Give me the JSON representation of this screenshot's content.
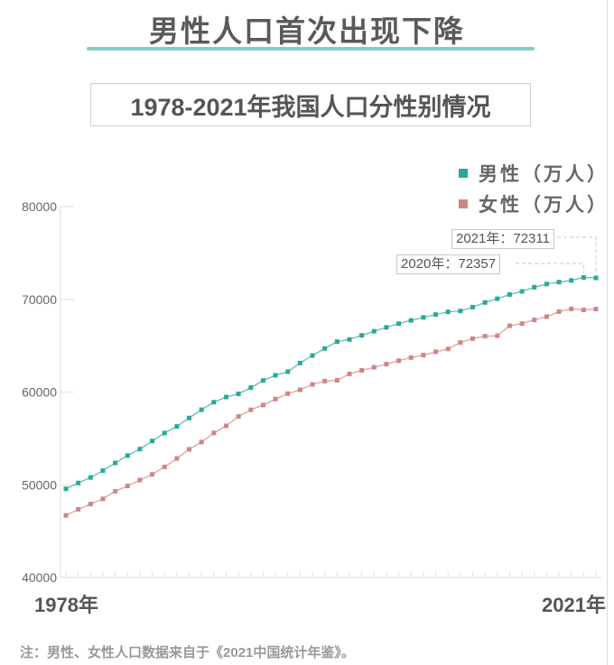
{
  "header": {
    "main_title": "男性人口首次出现下降",
    "subtitle": "1978-2021年我国人口分性别情况"
  },
  "legend": [
    {
      "label": "男性（万人）",
      "color": "#2aa89a"
    },
    {
      "label": "女性（万人）",
      "color": "#d08585"
    }
  ],
  "annotations": {
    "y2021": "2021年：72311",
    "y2020": "2020年：72357"
  },
  "axis": {
    "x_start_label": "1978年",
    "x_end_label": "2021年",
    "y_ticks": [
      "80000",
      "70000",
      "60000",
      "50000",
      "40000"
    ]
  },
  "note": "注：男性、女性人口数据来自于《2021中国统计年鉴》。",
  "chart_data": {
    "type": "line",
    "title": "1978-2021年我国人口分性别情况",
    "xlabel": "",
    "ylabel": "万人",
    "ylim": [
      40000,
      80000
    ],
    "grid": false,
    "legend_position": "top-right",
    "x": [
      1978,
      1979,
      1980,
      1981,
      1982,
      1983,
      1984,
      1985,
      1986,
      1987,
      1988,
      1989,
      1990,
      1991,
      1992,
      1993,
      1994,
      1995,
      1996,
      1997,
      1998,
      1999,
      2000,
      2001,
      2002,
      2003,
      2004,
      2005,
      2006,
      2007,
      2008,
      2009,
      2010,
      2011,
      2012,
      2013,
      2014,
      2015,
      2016,
      2017,
      2018,
      2019,
      2020,
      2021
    ],
    "series": [
      {
        "name": "男性（万人）",
        "color": "#2aa89a",
        "values": [
          49567,
          50192,
          50785,
          51519,
          52352,
          53152,
          53848,
          54725,
          55581,
          56290,
          57201,
          58099,
          58904,
          59466,
          59811,
          60472,
          61246,
          61808,
          62200,
          63131,
          63940,
          64692,
          65437,
          65672,
          66115,
          66556,
          66976,
          67375,
          67728,
          68048,
          68357,
          68647,
          68748,
          69161,
          69660,
          70063,
          70522,
          70857,
          71307,
          71650,
          71864,
          72039,
          72357,
          72311
        ]
      },
      {
        "name": "女性（万人）",
        "color": "#d08585",
        "values": [
          46692,
          47350,
          47920,
          48482,
          49302,
          49873,
          50509,
          51122,
          51926,
          52830,
          53825,
          54605,
          55587,
          56357,
          57364,
          58085,
          58604,
          59242,
          59829,
          60245,
          60821,
          61179,
          61263,
          61955,
          62338,
          62671,
          63012,
          63381,
          63720,
          63981,
          64345,
          64647,
          65343,
          65757,
          66022,
          66072,
          67149,
          67386,
          67774,
          68130,
          68674,
          68971,
          68855,
          68949
        ]
      }
    ],
    "annotations": [
      {
        "x": 2021,
        "text": "2021年：72311"
      },
      {
        "x": 2020,
        "text": "2020年：72357"
      }
    ]
  }
}
